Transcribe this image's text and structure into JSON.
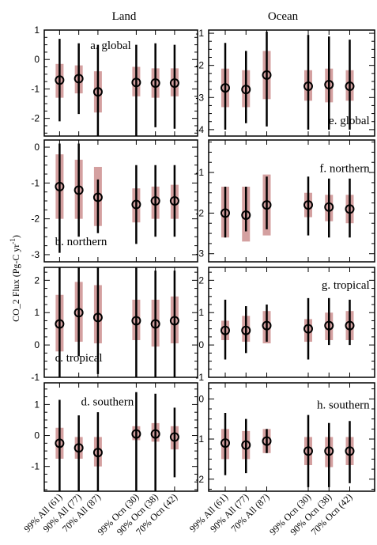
{
  "column_titles": [
    "Land",
    "Ocean"
  ],
  "ylabel": "CO_2 Flux (Pg-C yr",
  "ylabel_exp": "-1",
  "ylabel_close": ")",
  "colors": {
    "range90": "#d4a0a0",
    "range99": "#000000",
    "marker": "#000000",
    "frame": "#000000"
  },
  "chart_data": {
    "type": "errorbar",
    "categories": [
      "99% All (61)",
      "90% All (77)",
      "70% All (87)",
      "99% Ocn (30)",
      "90% Ocn (38)",
      "70% Ocn (42)"
    ],
    "panels": [
      {
        "id": "a",
        "label": "a. global",
        "column": "Land",
        "ylim": [
          -2.6,
          1.0
        ],
        "yticks": [
          -2,
          -1,
          0,
          1
        ],
        "mean": [
          -0.7,
          -0.65,
          -1.1,
          -0.78,
          -0.8,
          -0.8
        ],
        "range90": [
          [
            -1.3,
            -0.15
          ],
          [
            -1.15,
            -0.2
          ],
          [
            -1.8,
            -0.4
          ],
          [
            -1.25,
            -0.25
          ],
          [
            -1.3,
            -0.3
          ],
          [
            -1.25,
            -0.3
          ]
        ],
        "range99": [
          [
            -2.1,
            0.7
          ],
          [
            -1.85,
            0.55
          ],
          [
            -2.7,
            0.5
          ],
          [
            -2.6,
            0.5
          ],
          [
            -2.3,
            0.55
          ],
          [
            -2.35,
            0.5
          ]
        ]
      },
      {
        "id": "b",
        "label": "b. northern",
        "column": "Land",
        "ylim": [
          -3.2,
          0.2
        ],
        "yticks": [
          -3,
          -2,
          -1,
          0
        ],
        "mean": [
          -1.1,
          -1.2,
          -1.4,
          -1.6,
          -1.5,
          -1.5
        ],
        "range90": [
          [
            -2.0,
            -0.2
          ],
          [
            -2.0,
            -0.35
          ],
          [
            -2.2,
            -0.55
          ],
          [
            -2.1,
            -1.15
          ],
          [
            -2.0,
            -1.1
          ],
          [
            -2.0,
            -1.05
          ]
        ],
        "range99": [
          [
            -2.95,
            0.1
          ],
          [
            -2.5,
            0.1
          ],
          [
            -2.4,
            -0.9
          ],
          [
            -2.7,
            -0.5
          ],
          [
            -2.5,
            -0.5
          ],
          [
            -2.5,
            -0.5
          ]
        ]
      },
      {
        "id": "c",
        "label": "c. tropical",
        "column": "Land",
        "ylim": [
          -1.0,
          2.4
        ],
        "yticks": [
          -1,
          0,
          1,
          2
        ],
        "mean": [
          0.65,
          1.0,
          0.85,
          0.75,
          0.65,
          0.75
        ],
        "range90": [
          [
            -0.2,
            1.55
          ],
          [
            0.1,
            1.95
          ],
          [
            0.05,
            1.85
          ],
          [
            0.15,
            1.4
          ],
          [
            -0.05,
            1.4
          ],
          [
            0.05,
            1.5
          ]
        ],
        "range99": [
          [
            -1.1,
            2.5
          ],
          [
            -0.35,
            2.5
          ],
          [
            -0.9,
            2.5
          ],
          [
            -1.1,
            2.4
          ],
          [
            -1.1,
            2.3
          ],
          [
            -1.1,
            2.3
          ]
        ]
      },
      {
        "id": "d",
        "label": "d. southern",
        "column": "Land",
        "ylim": [
          -1.8,
          1.7
        ],
        "yticks": [
          -1,
          0,
          1
        ],
        "mean": [
          -0.25,
          -0.4,
          -0.55,
          0.05,
          0.05,
          -0.05
        ],
        "range90": [
          [
            -0.75,
            0.25
          ],
          [
            -0.75,
            -0.05
          ],
          [
            -1.0,
            -0.05
          ],
          [
            -0.15,
            0.3
          ],
          [
            -0.2,
            0.4
          ],
          [
            -0.45,
            0.3
          ]
        ],
        "range99": [
          [
            -1.8,
            1.15
          ],
          [
            -1.8,
            0.65
          ],
          [
            -1.8,
            0.75
          ],
          [
            -1.8,
            1.4
          ],
          [
            -1.8,
            1.35
          ],
          [
            -1.35,
            0.9
          ]
        ]
      },
      {
        "id": "e",
        "label": "e. global",
        "column": "Ocean",
        "ylim": [
          -4.2,
          -0.9
        ],
        "yticks": [
          -4,
          -3,
          -2,
          -1
        ],
        "mean": [
          -2.7,
          -2.75,
          -2.3,
          -2.65,
          -2.6,
          -2.65
        ],
        "range90": [
          [
            -3.3,
            -2.1
          ],
          [
            -3.3,
            -2.15
          ],
          [
            -3.05,
            -1.55
          ],
          [
            -3.1,
            -2.15
          ],
          [
            -3.15,
            -2.1
          ],
          [
            -3.1,
            -2.15
          ]
        ],
        "range99": [
          [
            -4.0,
            -1.3
          ],
          [
            -3.8,
            -1.55
          ],
          [
            -3.9,
            -0.95
          ],
          [
            -4.0,
            -1.05
          ],
          [
            -4.0,
            -1.1
          ],
          [
            -4.0,
            -1.2
          ]
        ]
      },
      {
        "id": "f",
        "label": "f. northern",
        "column": "Ocean",
        "ylim": [
          -3.2,
          -0.2
        ],
        "yticks": [
          -3,
          -2,
          -1
        ],
        "mean": [
          -2.0,
          -2.05,
          -1.8,
          -1.8,
          -1.85,
          -1.9
        ],
        "range90": [
          [
            -2.6,
            -1.35
          ],
          [
            -2.7,
            -1.35
          ],
          [
            -2.55,
            -1.05
          ],
          [
            -2.1,
            -1.5
          ],
          [
            -2.2,
            -1.55
          ],
          [
            -2.25,
            -1.55
          ]
        ],
        "range99": [
          [
            -2.6,
            -1.35
          ],
          [
            -2.45,
            -1.35
          ],
          [
            -2.4,
            -1.1
          ],
          [
            -2.55,
            -1.1
          ],
          [
            -2.6,
            -1.15
          ],
          [
            -2.6,
            -1.15
          ]
        ]
      },
      {
        "id": "g",
        "label": "g. tropical",
        "column": "Ocean",
        "ylim": [
          -1.0,
          2.4
        ],
        "yticks": [
          -1,
          0,
          1,
          2
        ],
        "mean": [
          0.45,
          0.45,
          0.6,
          0.5,
          0.6,
          0.6
        ],
        "range90": [
          [
            0.15,
            0.75
          ],
          [
            0.1,
            0.9
          ],
          [
            0.05,
            1.05
          ],
          [
            0.1,
            0.8
          ],
          [
            0.15,
            1.0
          ],
          [
            0.15,
            1.05
          ]
        ],
        "range99": [
          [
            -0.45,
            1.4
          ],
          [
            -0.25,
            1.2
          ],
          [
            0.1,
            1.25
          ],
          [
            -0.45,
            1.45
          ],
          [
            0.0,
            1.45
          ],
          [
            0.0,
            1.4
          ]
        ]
      },
      {
        "id": "h",
        "label": "h. southern",
        "column": "Ocean",
        "ylim": [
          -2.3,
          0.4
        ],
        "yticks": [
          -2,
          -1,
          0
        ],
        "mean": [
          -1.1,
          -1.15,
          -1.05,
          -1.3,
          -1.3,
          -1.3
        ],
        "range90": [
          [
            -1.5,
            -0.75
          ],
          [
            -1.5,
            -0.8
          ],
          [
            -1.35,
            -0.75
          ],
          [
            -1.65,
            -0.95
          ],
          [
            -1.7,
            -0.95
          ],
          [
            -1.65,
            -0.95
          ]
        ],
        "range99": [
          [
            -1.9,
            -0.35
          ],
          [
            -1.85,
            -0.5
          ],
          [
            -1.35,
            -0.75
          ],
          [
            -2.2,
            -0.4
          ],
          [
            -2.2,
            -0.6
          ],
          [
            -2.1,
            -0.55
          ]
        ]
      }
    ]
  }
}
